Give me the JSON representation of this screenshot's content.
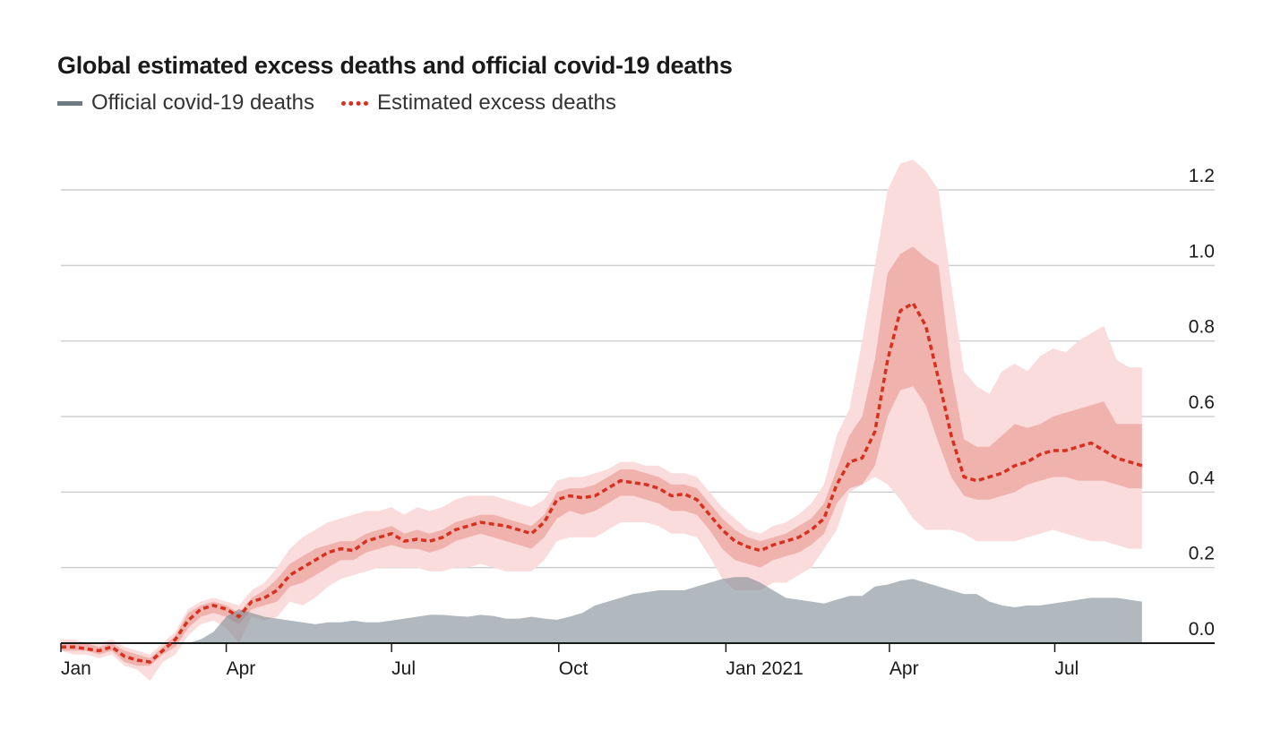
{
  "chart_data": {
    "type": "area",
    "title": "Global estimated excess deaths and official covid-19 deaths",
    "xlabel": "",
    "ylabel": "",
    "ylim": [
      0,
      1.2
    ],
    "x_ticks": [
      "Jan",
      "Apr",
      "Jul",
      "Oct",
      "Jan 2021",
      "Apr",
      "Jul"
    ],
    "y_ticks": [
      "0.0",
      "0.2",
      "0.4",
      "0.6",
      "0.8",
      "1.0",
      "1.2"
    ],
    "x": [
      0,
      7,
      14,
      21,
      28,
      35,
      42,
      49,
      56,
      63,
      70,
      77,
      84,
      91,
      98,
      105,
      112,
      119,
      126,
      133,
      140,
      147,
      154,
      161,
      168,
      175,
      182,
      189,
      196,
      203,
      210,
      217,
      224,
      231,
      238,
      245,
      252,
      259,
      266,
      273,
      280,
      287,
      294,
      301,
      308,
      315,
      322,
      329,
      336,
      343,
      350,
      357,
      364,
      371,
      378,
      385,
      392,
      399,
      406,
      413,
      420,
      427,
      434,
      441,
      448,
      455,
      462,
      469,
      476,
      483,
      490,
      497,
      504,
      511,
      518,
      525,
      532,
      539,
      546,
      553,
      560,
      567,
      574,
      581,
      588,
      595
    ],
    "series": [
      {
        "name": "Official covid-19 deaths",
        "color": "#7a868e",
        "values": [
          0,
          0,
          0,
          0,
          0,
          0,
          0,
          0,
          0,
          0,
          0,
          0.01,
          0.03,
          0.07,
          0.09,
          0.08,
          0.07,
          0.065,
          0.06,
          0.055,
          0.05,
          0.055,
          0.055,
          0.06,
          0.055,
          0.055,
          0.06,
          0.065,
          0.07,
          0.075,
          0.075,
          0.072,
          0.07,
          0.075,
          0.072,
          0.065,
          0.065,
          0.07,
          0.065,
          0.062,
          0.07,
          0.08,
          0.1,
          0.11,
          0.12,
          0.13,
          0.135,
          0.14,
          0.14,
          0.14,
          0.15,
          0.16,
          0.17,
          0.175,
          0.175,
          0.16,
          0.14,
          0.12,
          0.115,
          0.11,
          0.105,
          0.115,
          0.125,
          0.125,
          0.15,
          0.155,
          0.165,
          0.17,
          0.16,
          0.15,
          0.14,
          0.13,
          0.13,
          0.11,
          0.1,
          0.095,
          0.1,
          0.1,
          0.105,
          0.11,
          0.115,
          0.12,
          0.12,
          0.12,
          0.115,
          0.11
        ]
      },
      {
        "name": "Estimated excess deaths",
        "color": "#d7301f",
        "values": [
          -0.01,
          -0.01,
          -0.015,
          -0.02,
          -0.01,
          -0.035,
          -0.045,
          -0.05,
          -0.02,
          0.01,
          0.06,
          0.09,
          0.1,
          0.09,
          0.07,
          0.11,
          0.12,
          0.14,
          0.18,
          0.2,
          0.22,
          0.24,
          0.25,
          0.245,
          0.27,
          0.28,
          0.29,
          0.27,
          0.275,
          0.27,
          0.28,
          0.3,
          0.31,
          0.32,
          0.315,
          0.31,
          0.3,
          0.29,
          0.32,
          0.38,
          0.39,
          0.385,
          0.39,
          0.41,
          0.43,
          0.425,
          0.42,
          0.41,
          0.39,
          0.395,
          0.38,
          0.34,
          0.3,
          0.27,
          0.255,
          0.245,
          0.26,
          0.27,
          0.28,
          0.3,
          0.33,
          0.42,
          0.48,
          0.49,
          0.56,
          0.75,
          0.88,
          0.9,
          0.84,
          0.7,
          0.55,
          0.44,
          0.43,
          0.44,
          0.45,
          0.47,
          0.48,
          0.5,
          0.51,
          0.51,
          0.52,
          0.53,
          0.51,
          0.49,
          0.48,
          0.47
        ]
      }
    ],
    "uncertainty_band_inner": {
      "upper": [
        0,
        0,
        0,
        -0.01,
        0,
        -0.02,
        -0.03,
        -0.04,
        -0.01,
        0.02,
        0.08,
        0.1,
        0.11,
        0.1,
        0.08,
        0.12,
        0.14,
        0.17,
        0.21,
        0.23,
        0.25,
        0.26,
        0.27,
        0.27,
        0.29,
        0.3,
        0.31,
        0.29,
        0.3,
        0.29,
        0.3,
        0.32,
        0.33,
        0.34,
        0.34,
        0.33,
        0.32,
        0.31,
        0.34,
        0.4,
        0.41,
        0.41,
        0.42,
        0.44,
        0.46,
        0.46,
        0.45,
        0.44,
        0.42,
        0.42,
        0.41,
        0.37,
        0.33,
        0.3,
        0.28,
        0.27,
        0.28,
        0.29,
        0.31,
        0.33,
        0.37,
        0.46,
        0.55,
        0.6,
        0.75,
        0.98,
        1.03,
        1.05,
        1.02,
        1.0,
        0.72,
        0.54,
        0.52,
        0.52,
        0.55,
        0.58,
        0.57,
        0.58,
        0.6,
        0.61,
        0.62,
        0.63,
        0.64,
        0.58,
        0.58,
        0.58
      ]
    },
    "uncertainty_band_inner_lower": [
      -0.02,
      -0.02,
      -0.02,
      -0.03,
      -0.02,
      -0.05,
      -0.06,
      -0.06,
      -0.03,
      -0.01,
      0.04,
      0.07,
      0.08,
      0.07,
      0.05,
      0.09,
      0.1,
      0.11,
      0.15,
      0.16,
      0.18,
      0.2,
      0.22,
      0.22,
      0.24,
      0.25,
      0.26,
      0.25,
      0.25,
      0.24,
      0.25,
      0.27,
      0.28,
      0.29,
      0.28,
      0.27,
      0.26,
      0.25,
      0.28,
      0.33,
      0.35,
      0.34,
      0.35,
      0.37,
      0.39,
      0.39,
      0.38,
      0.37,
      0.35,
      0.35,
      0.34,
      0.3,
      0.25,
      0.22,
      0.21,
      0.2,
      0.22,
      0.23,
      0.24,
      0.26,
      0.29,
      0.37,
      0.41,
      0.42,
      0.47,
      0.6,
      0.67,
      0.68,
      0.63,
      0.53,
      0.44,
      0.39,
      0.38,
      0.38,
      0.39,
      0.4,
      0.42,
      0.43,
      0.44,
      0.44,
      0.43,
      0.43,
      0.43,
      0.42,
      0.41,
      0.41
    ]
  },
  "uncertainty_band_outer": {
    "upper": [
      0.01,
      0.01,
      0,
      0,
      0.01,
      -0.01,
      -0.02,
      -0.03,
      0,
      0.03,
      0.09,
      0.11,
      0.12,
      0.11,
      0.1,
      0.14,
      0.16,
      0.2,
      0.25,
      0.28,
      0.3,
      0.32,
      0.33,
      0.34,
      0.35,
      0.35,
      0.36,
      0.34,
      0.36,
      0.35,
      0.36,
      0.38,
      0.39,
      0.39,
      0.39,
      0.38,
      0.37,
      0.36,
      0.38,
      0.43,
      0.44,
      0.44,
      0.45,
      0.46,
      0.48,
      0.48,
      0.47,
      0.47,
      0.45,
      0.45,
      0.44,
      0.4,
      0.36,
      0.33,
      0.3,
      0.29,
      0.31,
      0.32,
      0.34,
      0.37,
      0.42,
      0.55,
      0.62,
      0.8,
      1.0,
      1.2,
      1.27,
      1.28,
      1.25,
      1.2,
      0.95,
      0.72,
      0.68,
      0.66,
      0.72,
      0.74,
      0.72,
      0.76,
      0.78,
      0.77,
      0.8,
      0.82,
      0.84,
      0.75,
      0.73,
      0.73
    ],
    "lower": [
      -0.02,
      -0.03,
      -0.03,
      -0.04,
      -0.03,
      -0.06,
      -0.07,
      -0.1,
      -0.05,
      -0.03,
      0.02,
      0.05,
      0.06,
      0.04,
      0.0,
      0.07,
      0.06,
      0.07,
      0.11,
      0.1,
      0.12,
      0.15,
      0.17,
      0.18,
      0.19,
      0.2,
      0.2,
      0.2,
      0.2,
      0.19,
      0.19,
      0.2,
      0.2,
      0.21,
      0.2,
      0.19,
      0.19,
      0.19,
      0.22,
      0.27,
      0.28,
      0.28,
      0.28,
      0.3,
      0.32,
      0.32,
      0.32,
      0.31,
      0.29,
      0.29,
      0.28,
      0.23,
      0.17,
      0.14,
      0.14,
      0.14,
      0.16,
      0.16,
      0.18,
      0.2,
      0.25,
      0.3,
      0.4,
      0.42,
      0.44,
      0.42,
      0.38,
      0.33,
      0.3,
      0.3,
      0.3,
      0.29,
      0.27,
      0.27,
      0.27,
      0.27,
      0.28,
      0.29,
      0.3,
      0.29,
      0.28,
      0.27,
      0.27,
      0.26,
      0.25,
      0.25
    ]
  },
  "legend": {
    "official_label": "Official covid-19 deaths",
    "excess_label": "Estimated excess deaths",
    "official_color": "#7a868e",
    "excess_color": "#d7301f"
  }
}
